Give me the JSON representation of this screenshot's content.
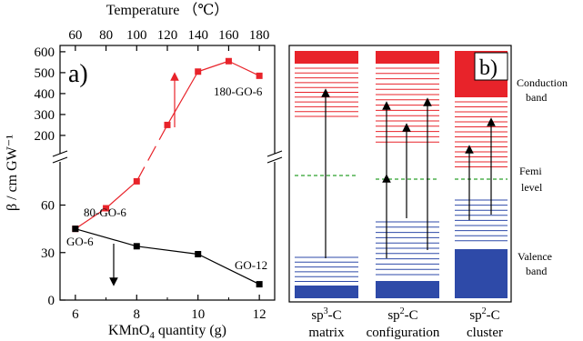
{
  "chart_data": [
    {
      "type": "line",
      "panel_label": "a)",
      "xlabel": "KMnO₄ quantity (g)",
      "xlabel_parts": {
        "pre": "KMnO",
        "sub": "4",
        "post": " quantity (g)"
      },
      "top_xlabel": "Temperature （℃）",
      "ylabel": "β / cm GW⁻¹",
      "xlim": [
        5.5,
        12.5
      ],
      "x_ticks": [
        6,
        8,
        10,
        12
      ],
      "top_x_ticks": [
        60,
        80,
        100,
        120,
        140,
        160,
        180
      ],
      "y_break": true,
      "lower_ylim": [
        0,
        85
      ],
      "lower_y_ticks": [
        0,
        30,
        60
      ],
      "upper_ylim": [
        130,
        630
      ],
      "upper_y_ticks": [
        200,
        300,
        400,
        500,
        600
      ],
      "series": [
        {
          "name": "",
          "color": "#e8232a",
          "marker": "square",
          "x_unit": "temperature",
          "points": [
            [
              60,
              45
            ],
            [
              80,
              58
            ],
            [
              100,
              75
            ],
            [
              120,
              250
            ],
            [
              140,
              505
            ],
            [
              160,
              555
            ],
            [
              180,
              485
            ]
          ]
        },
        {
          "name": "",
          "color": "#000000",
          "marker": "square",
          "x_unit": "kmno4",
          "points": [
            [
              6,
              45
            ],
            [
              8,
              34
            ],
            [
              10,
              29
            ],
            [
              12,
              10
            ]
          ]
        }
      ],
      "annotations": [
        {
          "text": "GO-6",
          "x": 6,
          "y": 45
        },
        {
          "text": "80-GO-6",
          "x": 80,
          "y": 58
        },
        {
          "text": "180-GO-6",
          "x": 180,
          "y": 485
        },
        {
          "text": "GO-12",
          "x": 12,
          "y": 10
        }
      ]
    },
    {
      "type": "diagram",
      "panel_label": "b)",
      "columns": [
        {
          "label_line1": "sp³-C",
          "label_sup": "3",
          "label_base": "sp",
          "label_suffix": "-C",
          "label_line2": "matrix"
        },
        {
          "label_line1": "sp²-C",
          "label_sup": "2",
          "label_base": "sp",
          "label_suffix": "-C",
          "label_line2": "configuration"
        },
        {
          "label_line1": "sp²-C",
          "label_sup": "2",
          "label_base": "sp",
          "label_suffix": "-C",
          "label_line2": "cluster"
        }
      ],
      "side_labels": {
        "conduction": [
          "Conduction",
          "band"
        ],
        "fermi": [
          "Femi",
          "level"
        ],
        "valence": [
          "Valence",
          "band"
        ]
      },
      "colors": {
        "conduction": "#e8232a",
        "valence": "#2e4aa8",
        "fermi": "#2ca02c"
      }
    }
  ]
}
